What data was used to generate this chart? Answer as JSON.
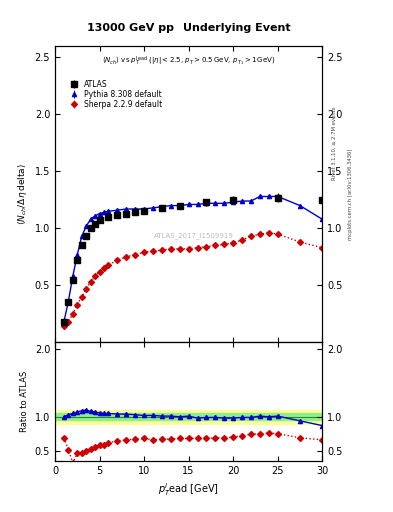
{
  "title_left": "13000 GeV pp",
  "title_right": "Underlying Event",
  "subtitle": "<N_{ch}> vs p_{T}^{lead} (|#eta| < 2.5, p_{T} > 0.5 GeV, p_{T_{1}} > 1 GeV)",
  "ylabel_main": "<N_{ch} / #Delta#eta delta>",
  "ylabel_ratio": "Ratio to ATLAS",
  "xlabel": "p_{T}^{l}ead [GeV]",
  "annotation": "ATLAS_2017_I1509919",
  "right_label_top": "Rivet 3.1.10, >= 2.7M events",
  "right_label_bot": "mcplots.cern.ch [arXiv:1306.3436]",
  "atlas_x": [
    1.0,
    1.5,
    2.0,
    2.5,
    3.0,
    3.5,
    4.0,
    4.5,
    5.0,
    6.0,
    7.0,
    8.0,
    9.0,
    10.0,
    12.0,
    14.0,
    17.0,
    20.0,
    25.0,
    30.0
  ],
  "atlas_y": [
    0.18,
    0.35,
    0.55,
    0.72,
    0.85,
    0.93,
    1.0,
    1.04,
    1.07,
    1.1,
    1.12,
    1.13,
    1.14,
    1.15,
    1.18,
    1.2,
    1.23,
    1.25,
    1.27,
    1.25
  ],
  "atlas_yerr": [
    0.02,
    0.02,
    0.02,
    0.02,
    0.02,
    0.02,
    0.02,
    0.02,
    0.02,
    0.02,
    0.02,
    0.02,
    0.02,
    0.02,
    0.02,
    0.02,
    0.03,
    0.03,
    0.04,
    0.04
  ],
  "pythia_x": [
    1.0,
    1.5,
    2.0,
    2.5,
    3.0,
    3.5,
    4.0,
    4.5,
    5.0,
    5.5,
    6.0,
    7.0,
    8.0,
    9.0,
    10.0,
    11.0,
    12.0,
    13.0,
    14.0,
    15.0,
    16.0,
    17.0,
    18.0,
    19.0,
    20.0,
    21.0,
    22.0,
    23.0,
    24.0,
    25.0,
    27.5,
    30.0
  ],
  "pythia_y": [
    0.18,
    0.36,
    0.58,
    0.77,
    0.93,
    1.02,
    1.08,
    1.11,
    1.13,
    1.14,
    1.15,
    1.16,
    1.17,
    1.17,
    1.17,
    1.18,
    1.19,
    1.2,
    1.2,
    1.21,
    1.21,
    1.22,
    1.22,
    1.22,
    1.23,
    1.24,
    1.24,
    1.28,
    1.28,
    1.28,
    1.2,
    1.08
  ],
  "pythia_yerr": [
    0.005,
    0.005,
    0.005,
    0.005,
    0.005,
    0.005,
    0.005,
    0.005,
    0.005,
    0.005,
    0.005,
    0.005,
    0.005,
    0.005,
    0.005,
    0.005,
    0.005,
    0.005,
    0.005,
    0.005,
    0.005,
    0.005,
    0.005,
    0.005,
    0.005,
    0.005,
    0.005,
    0.005,
    0.005,
    0.005,
    0.01,
    0.02
  ],
  "sherpa_x": [
    1.0,
    1.5,
    2.0,
    2.5,
    3.0,
    3.5,
    4.0,
    4.5,
    5.0,
    5.5,
    6.0,
    7.0,
    8.0,
    9.0,
    10.0,
    11.0,
    12.0,
    13.0,
    14.0,
    15.0,
    16.0,
    17.0,
    18.0,
    19.0,
    20.0,
    21.0,
    22.0,
    23.0,
    24.0,
    25.0,
    27.5,
    30.0
  ],
  "sherpa_y": [
    0.14,
    0.18,
    0.25,
    0.33,
    0.4,
    0.47,
    0.53,
    0.58,
    0.62,
    0.65,
    0.68,
    0.72,
    0.75,
    0.77,
    0.79,
    0.8,
    0.81,
    0.82,
    0.82,
    0.82,
    0.83,
    0.84,
    0.85,
    0.86,
    0.87,
    0.9,
    0.93,
    0.95,
    0.96,
    0.95,
    0.88,
    0.83
  ],
  "sherpa_yerr": [
    0.005,
    0.005,
    0.005,
    0.005,
    0.005,
    0.005,
    0.005,
    0.005,
    0.005,
    0.005,
    0.005,
    0.005,
    0.005,
    0.005,
    0.005,
    0.005,
    0.005,
    0.005,
    0.005,
    0.005,
    0.005,
    0.005,
    0.005,
    0.005,
    0.005,
    0.005,
    0.005,
    0.005,
    0.005,
    0.005,
    0.01,
    0.02
  ],
  "pythia_ratio_x": [
    1.0,
    1.5,
    2.0,
    2.5,
    3.0,
    3.5,
    4.0,
    4.5,
    5.0,
    5.5,
    6.0,
    7.0,
    8.0,
    9.0,
    10.0,
    11.0,
    12.0,
    13.0,
    14.0,
    15.0,
    16.0,
    17.0,
    18.0,
    19.0,
    20.0,
    21.0,
    22.0,
    23.0,
    24.0,
    25.0,
    27.5,
    30.0
  ],
  "pythia_ratio_y": [
    1.0,
    1.03,
    1.05,
    1.07,
    1.09,
    1.1,
    1.08,
    1.07,
    1.06,
    1.05,
    1.05,
    1.04,
    1.04,
    1.03,
    1.02,
    1.02,
    1.01,
    1.01,
    1.0,
    1.01,
    0.98,
    0.99,
    0.99,
    0.98,
    0.98,
    0.99,
    0.99,
    1.01,
    1.0,
    1.01,
    0.94,
    0.87
  ],
  "pythia_ratio_yerr": [
    0.01,
    0.01,
    0.01,
    0.01,
    0.01,
    0.01,
    0.01,
    0.01,
    0.01,
    0.01,
    0.01,
    0.01,
    0.01,
    0.01,
    0.01,
    0.01,
    0.01,
    0.01,
    0.01,
    0.01,
    0.01,
    0.01,
    0.01,
    0.01,
    0.02,
    0.02,
    0.02,
    0.02,
    0.02,
    0.02,
    0.03,
    0.05
  ],
  "sherpa_ratio_x": [
    1.0,
    1.5,
    2.0,
    2.5,
    3.0,
    3.5,
    4.0,
    4.5,
    5.0,
    5.5,
    6.0,
    7.0,
    8.0,
    9.0,
    10.0,
    11.0,
    12.0,
    13.0,
    14.0,
    15.0,
    16.0,
    17.0,
    18.0,
    19.0,
    20.0,
    21.0,
    22.0,
    23.0,
    24.0,
    25.0,
    27.5,
    30.0
  ],
  "sherpa_ratio_y": [
    0.69,
    0.51,
    0.32,
    0.46,
    0.47,
    0.5,
    0.53,
    0.56,
    0.58,
    0.59,
    0.62,
    0.64,
    0.66,
    0.67,
    0.68,
    0.66,
    0.67,
    0.67,
    0.68,
    0.68,
    0.68,
    0.68,
    0.69,
    0.69,
    0.7,
    0.72,
    0.74,
    0.75,
    0.76,
    0.75,
    0.69,
    0.66
  ],
  "sherpa_ratio_yerr": [
    0.01,
    0.01,
    0.01,
    0.01,
    0.01,
    0.01,
    0.01,
    0.01,
    0.01,
    0.01,
    0.01,
    0.01,
    0.01,
    0.01,
    0.01,
    0.01,
    0.01,
    0.01,
    0.01,
    0.01,
    0.01,
    0.01,
    0.01,
    0.01,
    0.02,
    0.02,
    0.02,
    0.02,
    0.02,
    0.02,
    0.03,
    0.05
  ],
  "atlas_color": "#000000",
  "pythia_color": "#0000cc",
  "sherpa_color": "#cc0000",
  "band_color_green": "#90ee90",
  "band_color_yellow": "#ffff99",
  "xlim": [
    0,
    30
  ],
  "ylim_main": [
    0.0,
    2.6
  ],
  "ylim_ratio": [
    0.35,
    2.1
  ],
  "yticks_main": [
    0.5,
    1.0,
    1.5,
    2.0,
    2.5
  ],
  "yticks_ratio": [
    0.5,
    1.0,
    2.0
  ]
}
